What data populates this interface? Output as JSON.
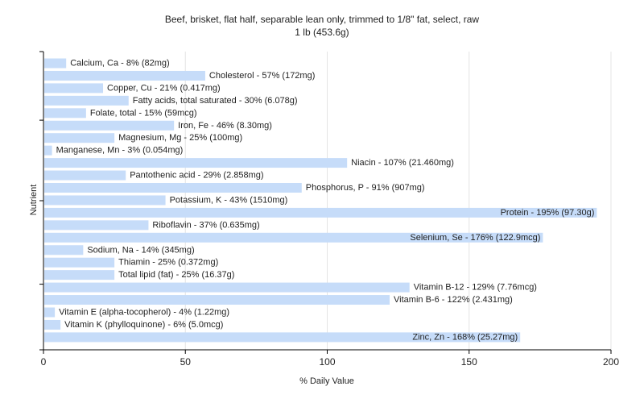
{
  "chart_data": {
    "type": "bar",
    "orientation": "horizontal",
    "title": "Beef, brisket, flat half, separable lean only, trimmed to 1/8\" fat, select, raw",
    "subtitle": "1 lb (453.6g)",
    "xlabel": "% Daily Value",
    "ylabel": "Nutrient",
    "xlim": [
      0,
      200
    ],
    "xticks": [
      0,
      50,
      100,
      150,
      200
    ],
    "grid": true,
    "bar_color": "#c6dcf9",
    "grid_color": "#e4e4e4",
    "categories": [
      "Calcium, Ca - 8% (82mg)",
      "Cholesterol - 57% (172mg)",
      "Copper, Cu - 21% (0.417mg)",
      "Fatty acids, total saturated - 30% (6.078g)",
      "Folate, total - 15% (59mcg)",
      "Iron, Fe - 46% (8.30mg)",
      "Magnesium, Mg - 25% (100mg)",
      "Manganese, Mn - 3% (0.054mg)",
      "Niacin - 107% (21.460mg)",
      "Pantothenic acid - 29% (2.858mg)",
      "Phosphorus, P - 91% (907mg)",
      "Potassium, K - 43% (1510mg)",
      "Protein - 195% (97.30g)",
      "Riboflavin - 37% (0.635mg)",
      "Selenium, Se - 176% (122.9mcg)",
      "Sodium, Na - 14% (345mg)",
      "Thiamin - 25% (0.372mg)",
      "Total lipid (fat) - 25% (16.37g)",
      "Vitamin B-12 - 129% (7.76mcg)",
      "Vitamin B-6 - 122% (2.431mg)",
      "Vitamin E (alpha-tocopherol) - 4% (1.22mg)",
      "Vitamin K (phylloquinone) - 6% (5.0mcg)",
      "Zinc, Zn - 168% (25.27mg)"
    ],
    "values": [
      8,
      57,
      21,
      30,
      15,
      46,
      25,
      3,
      107,
      29,
      91,
      43,
      195,
      37,
      176,
      14,
      25,
      25,
      129,
      122,
      4,
      6,
      168
    ]
  }
}
